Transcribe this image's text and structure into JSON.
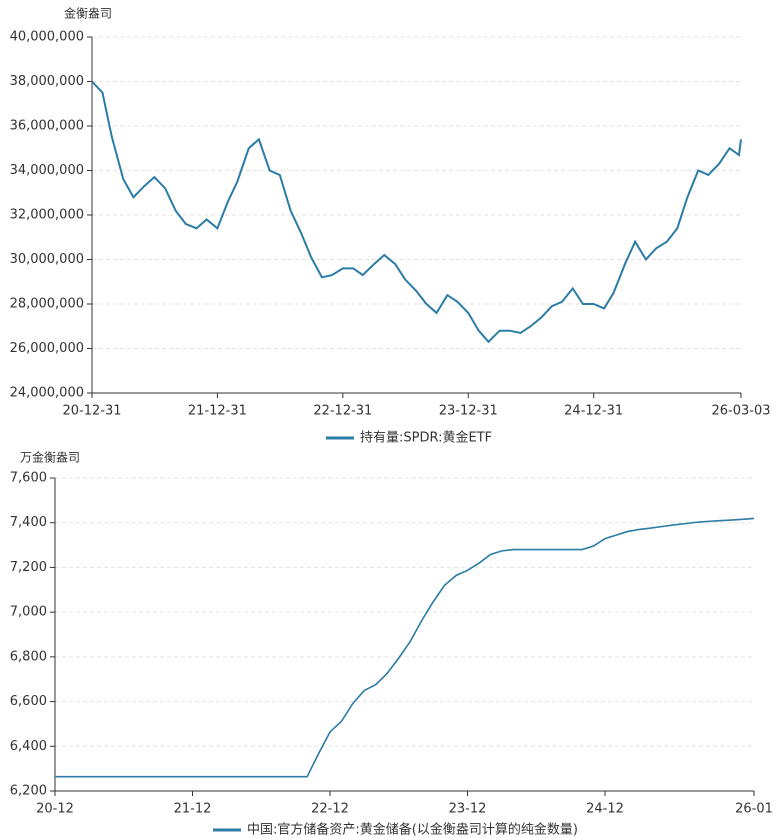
{
  "chart_data": [
    {
      "type": "line",
      "y_unit": "金衡盎司",
      "x": [
        "20-12-31",
        "21-01-31",
        "21-02-28",
        "21-03-31",
        "21-04-30",
        "21-05-31",
        "21-06-30",
        "21-07-31",
        "21-08-31",
        "21-09-30",
        "21-10-31",
        "21-11-30",
        "21-12-31",
        "22-01-31",
        "22-02-28",
        "22-03-31",
        "22-04-30",
        "22-05-31",
        "22-06-30",
        "22-07-31",
        "22-08-31",
        "22-09-30",
        "22-10-31",
        "22-11-30",
        "22-12-31",
        "23-01-31",
        "23-02-28",
        "23-03-31",
        "23-04-30",
        "23-05-31",
        "23-06-30",
        "23-07-31",
        "23-08-31",
        "23-09-30",
        "23-10-31",
        "23-11-30",
        "23-12-31",
        "24-01-31",
        "24-02-29",
        "24-03-31",
        "24-04-30",
        "24-05-31",
        "24-06-30",
        "24-07-31",
        "24-08-31",
        "24-09-30",
        "24-10-31",
        "24-11-30",
        "24-12-31",
        "25-01-31",
        "25-02-28",
        "25-03-31",
        "25-04-30",
        "25-05-31",
        "25-06-30",
        "25-07-31",
        "25-08-31",
        "25-09-30",
        "25-10-31",
        "25-11-30",
        "25-12-31",
        "26-01-31",
        "26-02-28",
        "26-03-03"
      ],
      "series": [
        {
          "name": "持有量:SPDR:黄金ETF",
          "color": "#2b7ca6",
          "values": [
            38000000,
            37500000,
            35500000,
            33600000,
            32800000,
            33300000,
            33700000,
            33200000,
            32200000,
            31600000,
            31400000,
            31800000,
            31400000,
            32600000,
            33500000,
            35000000,
            35400000,
            34000000,
            33800000,
            32200000,
            31200000,
            30100000,
            29200000,
            29300000,
            29600000,
            29600000,
            29300000,
            29800000,
            30200000,
            29800000,
            29100000,
            28600000,
            28000000,
            27600000,
            28400000,
            28100000,
            27600000,
            26800000,
            26300000,
            26800000,
            26800000,
            26700000,
            27000000,
            27400000,
            27900000,
            28100000,
            28700000,
            28000000,
            28000000,
            27800000,
            28500000,
            29800000,
            30800000,
            30000000,
            30500000,
            30800000,
            31400000,
            32800000,
            34000000,
            33800000,
            34300000,
            35000000,
            34700000,
            35400000
          ]
        }
      ],
      "xlim": [
        "20-12-31",
        "26-03-03"
      ],
      "xticks": [
        "20-12-31",
        "21-12-31",
        "22-12-31",
        "23-12-31",
        "24-12-31",
        "26-03-03"
      ],
      "ylim": [
        24000000,
        40000000
      ],
      "yticks": [
        {
          "value": 24000000,
          "label": "24,000,000"
        },
        {
          "value": 26000000,
          "label": "26,000,000"
        },
        {
          "value": 28000000,
          "label": "28,000,000"
        },
        {
          "value": 30000000,
          "label": "30,000,000"
        },
        {
          "value": 32000000,
          "label": "32,000,000"
        },
        {
          "value": 34000000,
          "label": "34,000,000"
        },
        {
          "value": 36000000,
          "label": "36,000,000"
        },
        {
          "value": 38000000,
          "label": "38,000,000"
        },
        {
          "value": 40000000,
          "label": "40,000,000"
        }
      ],
      "grid": true,
      "legend": "bottom"
    },
    {
      "type": "line",
      "y_unit": "万金衡盎司",
      "x": [
        "20-12",
        "22-10",
        "22-11",
        "22-12",
        "23-01",
        "23-02",
        "23-03",
        "23-04",
        "23-05",
        "23-06",
        "23-07",
        "23-08",
        "23-09",
        "23-10",
        "23-11",
        "23-12",
        "24-01",
        "24-02",
        "24-03",
        "24-04",
        "24-10",
        "24-11",
        "24-12",
        "25-01",
        "25-02",
        "25-03",
        "25-04",
        "25-05",
        "25-06",
        "25-07",
        "25-08",
        "25-09",
        "25-10",
        "25-11",
        "25-12",
        "26-01"
      ],
      "series": [
        {
          "name": "中国:官方储备资产:黄金储备(以金衡盎司计算的纯金数量)",
          "color": "#2b7ca6",
          "values": [
            6264,
            6264,
            6367,
            6464,
            6512,
            6592,
            6650,
            6676,
            6727,
            6795,
            6869,
            6962,
            7046,
            7120,
            7164,
            7187,
            7219,
            7258,
            7274,
            7280,
            7280,
            7296,
            7329,
            7345,
            7361,
            7370,
            7376,
            7383,
            7390,
            7396,
            7402,
            7406,
            7409,
            7412,
            7415,
            7419
          ]
        }
      ],
      "xlim": [
        "20-12",
        "26-01"
      ],
      "xticks": [
        "20-12",
        "21-12",
        "22-12",
        "23-12",
        "24-12",
        "26-01"
      ],
      "ylim": [
        6200,
        7600
      ],
      "yticks": [
        {
          "value": 6200,
          "label": "6,200"
        },
        {
          "value": 6400,
          "label": "6,400"
        },
        {
          "value": 6600,
          "label": "6,600"
        },
        {
          "value": 6800,
          "label": "6,800"
        },
        {
          "value": 7000,
          "label": "7,000"
        },
        {
          "value": 7200,
          "label": "7,200"
        },
        {
          "value": 7400,
          "label": "7,400"
        },
        {
          "value": 7600,
          "label": "7,600"
        }
      ],
      "grid": true,
      "legend": "bottom"
    }
  ]
}
